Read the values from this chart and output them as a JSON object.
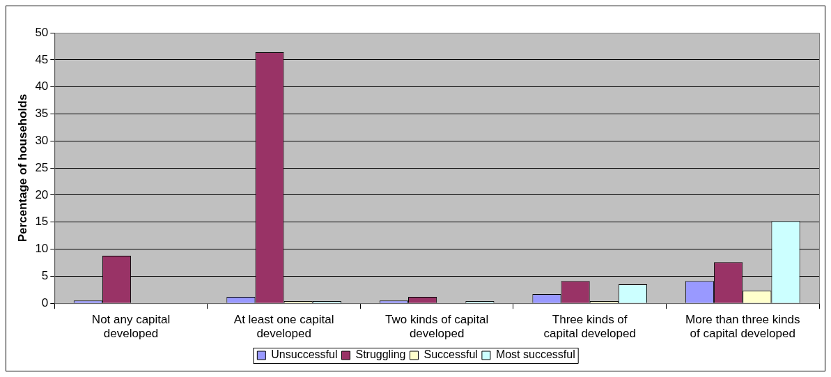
{
  "chart_data": {
    "type": "bar",
    "ylabel": "Percentage of households",
    "categories": [
      "Not any capital developed",
      "At least one capital developed",
      "Two kinds of capital developed",
      "Three kinds of capital developed",
      "More than three kinds of capital developed"
    ],
    "series": [
      {
        "name": "Unsuccessful",
        "color": "#9999ff",
        "values": [
          0.5,
          1.2,
          0.5,
          1.7,
          4.1
        ]
      },
      {
        "name": "Struggling",
        "color": "#993366",
        "values": [
          8.8,
          46.4,
          1.2,
          4.1,
          7.6
        ]
      },
      {
        "name": "Successful",
        "color": "#ffffcc",
        "values": [
          0,
          0.4,
          0,
          0.4,
          2.3
        ]
      },
      {
        "name": "Most successful",
        "color": "#ccffff",
        "values": [
          0,
          0.4,
          0.4,
          3.5,
          15.2
        ]
      }
    ],
    "ylim": [
      0,
      50
    ],
    "yticks": [
      0,
      5,
      10,
      15,
      20,
      25,
      30,
      35,
      40,
      45,
      50
    ],
    "grid": "y",
    "legend": "bottom"
  }
}
